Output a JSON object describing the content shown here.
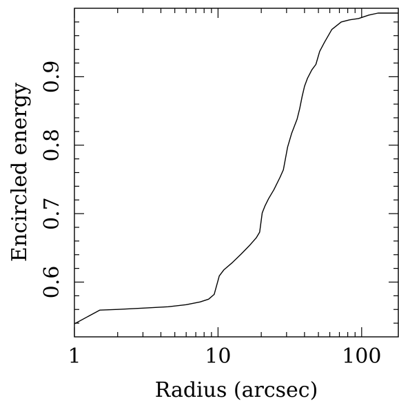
{
  "chart_data": {
    "type": "line",
    "title": "",
    "xlabel": "Radius (arcsec)",
    "ylabel": "Encircled energy",
    "xscale": "log",
    "xlim": [
      1,
      180
    ],
    "ylim": [
      0.52,
      1.0
    ],
    "grid": false,
    "x_ticks": [
      {
        "value": 1,
        "label": "1"
      },
      {
        "value": 10,
        "label": "10"
      },
      {
        "value": 100,
        "label": "100"
      }
    ],
    "y_ticks": [
      {
        "value": 0.6,
        "label": "0.6"
      },
      {
        "value": 0.7,
        "label": "0.7"
      },
      {
        "value": 0.8,
        "label": "0.8"
      },
      {
        "value": 0.9,
        "label": "0.9"
      }
    ],
    "series": [
      {
        "x": [
          1.0,
          1.5,
          2.0,
          3.0,
          4.5,
          6.0,
          7.5,
          8.6,
          9.4,
          10.2,
          11.0,
          12.5,
          14.5,
          16.5,
          18.5,
          19.5,
          20.3,
          21.2,
          22.5,
          24.5,
          27.0,
          28.5,
          30.5,
          32.5,
          35.5,
          37.0,
          38.5,
          40.0,
          42.0,
          45.0,
          48.0,
          51.0,
          55.0,
          62.0,
          72.0,
          82.0,
          95.0,
          112.0,
          130.0,
          180.0
        ],
        "y": [
          0.539,
          0.559,
          0.56,
          0.562,
          0.564,
          0.567,
          0.571,
          0.575,
          0.582,
          0.609,
          0.618,
          0.628,
          0.641,
          0.653,
          0.665,
          0.673,
          0.701,
          0.711,
          0.722,
          0.735,
          0.753,
          0.764,
          0.797,
          0.817,
          0.838,
          0.853,
          0.871,
          0.886,
          0.898,
          0.91,
          0.918,
          0.937,
          0.95,
          0.969,
          0.98,
          0.983,
          0.985,
          0.99,
          0.993,
          0.993
        ]
      }
    ]
  }
}
